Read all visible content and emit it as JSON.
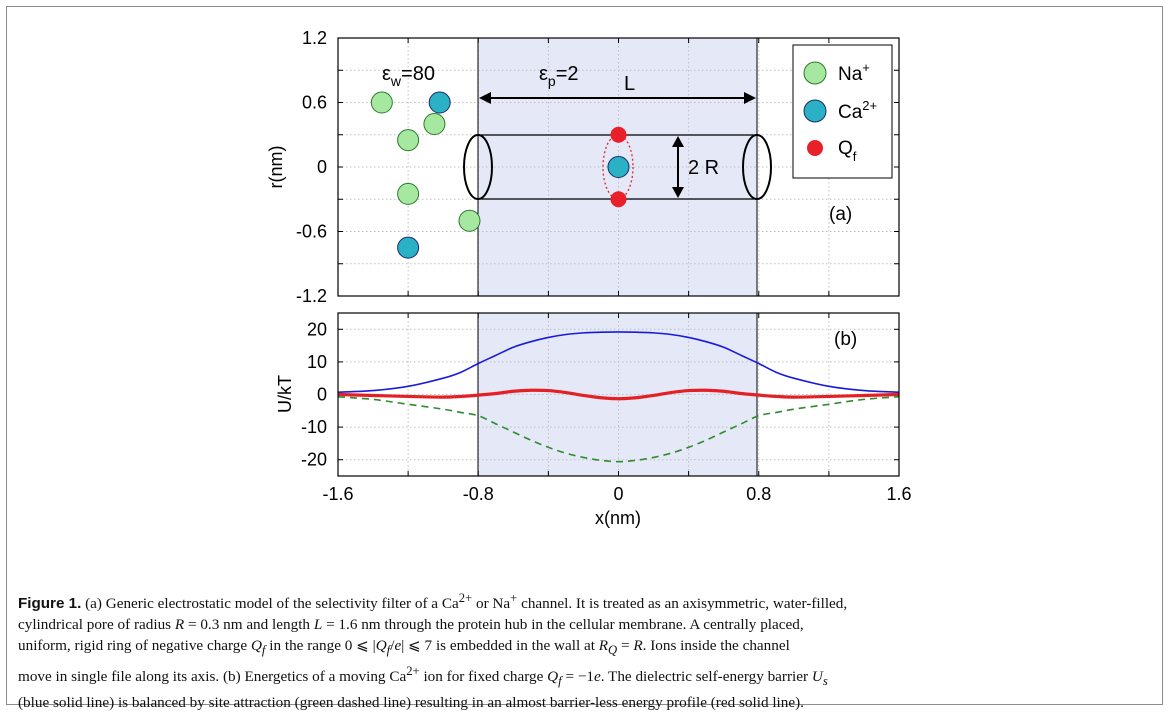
{
  "figure": {
    "panel_a": {
      "label": "(a)",
      "ylabel": "r(nm)",
      "yticks": [
        "1.2",
        "0.6",
        "0",
        "-0.6",
        "-1.2"
      ],
      "eps_w_base": "ε",
      "eps_w_sub": "w",
      "eps_w_val": "=80",
      "eps_p_base": "ε",
      "eps_p_sub": "p",
      "eps_p_val": "=2",
      "length_label": "L",
      "radius_label": "2 R",
      "legend": [
        {
          "base": "Na",
          "sup": "+",
          "sub": "",
          "color": "#a6e8a0"
        },
        {
          "base": "Ca",
          "sup": "2+",
          "sub": "",
          "color": "#2bb1c6"
        },
        {
          "base": "Q",
          "sup": "",
          "sub": "f",
          "color": "#e8202a"
        }
      ]
    },
    "panel_b": {
      "label": "(b)",
      "ylabel": "U/kT",
      "yticks": [
        "20",
        "10",
        "0",
        "-10",
        "-20"
      ],
      "xticks": [
        "-1.6",
        "-0.8",
        "0",
        "0.8",
        "1.6"
      ],
      "xlabel": "x(nm)"
    },
    "colors": {
      "shade": "#e4e8f7",
      "na_ion": "#a6e8a0",
      "ca_ion": "#2bb1c6",
      "q_fixed": "#e8202a",
      "blue_curve": "#1a1adb",
      "red_curve": "#e52025",
      "green_curve": "#2e8b2e"
    }
  },
  "chart_data": [
    {
      "type": "scatter",
      "title": "",
      "xlabel": "",
      "ylabel": "r(nm)",
      "xlim": [
        -1.6,
        1.6
      ],
      "ylim": [
        -1.2,
        1.2
      ],
      "grid": true,
      "legend_position": "top-right",
      "shaded_region_x": [
        -0.8,
        0.8
      ],
      "series": [
        {
          "name": "Na+",
          "points": [
            [
              -1.35,
              0.6
            ],
            [
              -1.2,
              0.25
            ],
            [
              -1.2,
              -0.25
            ],
            [
              -1.05,
              0.4
            ],
            [
              -0.85,
              -0.5
            ]
          ]
        },
        {
          "name": "Ca2+",
          "points": [
            [
              -1.2,
              -0.75
            ],
            [
              -1.02,
              0.6
            ],
            [
              0,
              0
            ]
          ]
        },
        {
          "name": "Qf",
          "points": [
            [
              0,
              0.3
            ],
            [
              0,
              -0.3
            ]
          ]
        }
      ]
    },
    {
      "type": "line",
      "title": "",
      "xlabel": "x(nm)",
      "ylabel": "U/kT",
      "xlim": [
        -1.6,
        1.6
      ],
      "ylim": [
        -25,
        25
      ],
      "grid": true,
      "shaded_region_x": [
        -0.8,
        0.8
      ],
      "x": [
        -1.6,
        -1.4,
        -1.2,
        -1.0,
        -0.9,
        -0.8,
        -0.7,
        -0.6,
        -0.5,
        -0.4,
        -0.3,
        -0.2,
        -0.1,
        0,
        0.1,
        0.2,
        0.3,
        0.4,
        0.5,
        0.6,
        0.7,
        0.8,
        0.9,
        1.0,
        1.2,
        1.4,
        1.6
      ],
      "series": [
        {
          "name": "",
          "color": "blue",
          "style": "solid",
          "values": [
            0.7,
            1.2,
            2.5,
            5,
            6.8,
            9.5,
            12,
            14.5,
            16.2,
            17.5,
            18.4,
            18.9,
            19.1,
            19.2,
            19.1,
            18.9,
            18.4,
            17.5,
            16.2,
            14.5,
            12,
            9.5,
            6.8,
            5,
            2.5,
            1.2,
            0.7
          ]
        },
        {
          "name": "",
          "color": "red",
          "style": "solid",
          "values": [
            0,
            -0.3,
            -0.6,
            -0.8,
            -0.6,
            -0.2,
            0.3,
            1.0,
            1.3,
            1.2,
            0.6,
            -0.3,
            -1.0,
            -1.3,
            -1.0,
            -0.3,
            0.6,
            1.2,
            1.3,
            1.0,
            0.3,
            -0.2,
            -0.6,
            -0.8,
            -0.6,
            -0.3,
            0
          ]
        },
        {
          "name": "",
          "color": "green",
          "style": "dashed",
          "values": [
            -0.7,
            -1.5,
            -3,
            -4.5,
            -5.5,
            -6.5,
            -9,
            -11.5,
            -14,
            -16.2,
            -18,
            -19.3,
            -20.2,
            -20.6,
            -20.2,
            -19.3,
            -18,
            -16.2,
            -14,
            -11.5,
            -9,
            -6.5,
            -5.5,
            -4.5,
            -3,
            -1.5,
            -0.7
          ]
        }
      ]
    }
  ],
  "caption": {
    "fig_label": "Figure 1.",
    "p1": " (a) Generic electrostatic model of the selectivity filter of a Ca",
    "p1_sup": "2+",
    "p2": " or Na",
    "p2_sup": "+",
    "p3": " channel. It is treated as an axisymmetric, water-filled,",
    "p4": "cylindrical pore of radius ",
    "R": "R",
    "p5": " = 0.3 nm and length ",
    "L": "L",
    "p6": " = 1.6 nm through the protein hub in the cellular membrane. A centrally placed,",
    "p7": "uniform, rigid ring of negative charge ",
    "Qf": "Q",
    "Qf_sub": "f",
    "p8": " in the range 0 ⩽ |",
    "Qf2": "Q",
    "Qf2_sub": "f",
    "p9": "/",
    "e": "e",
    "p10": "| ⩽ 7 is embedded in the wall at ",
    "RQ": "R",
    "RQ_sub": "Q",
    "p11": " = ",
    "R2": "R",
    "p12": ". Ions inside the channel",
    "p13": "move in single file along its axis. (b) Energetics of a moving Ca",
    "p13_sup": "2+",
    "p14": " ion for fixed charge ",
    "Qf3": "Q",
    "Qf3_sub": "f",
    "p15": " = −1",
    "e2": "e",
    "p16": ". The dielectric self-energy barrier ",
    "Us": "U",
    "Us_sub": "s",
    "p17": "(blue solid line) is balanced by site attraction (green dashed line) resulting in an almost barrier-less energy profile (red solid line)."
  }
}
